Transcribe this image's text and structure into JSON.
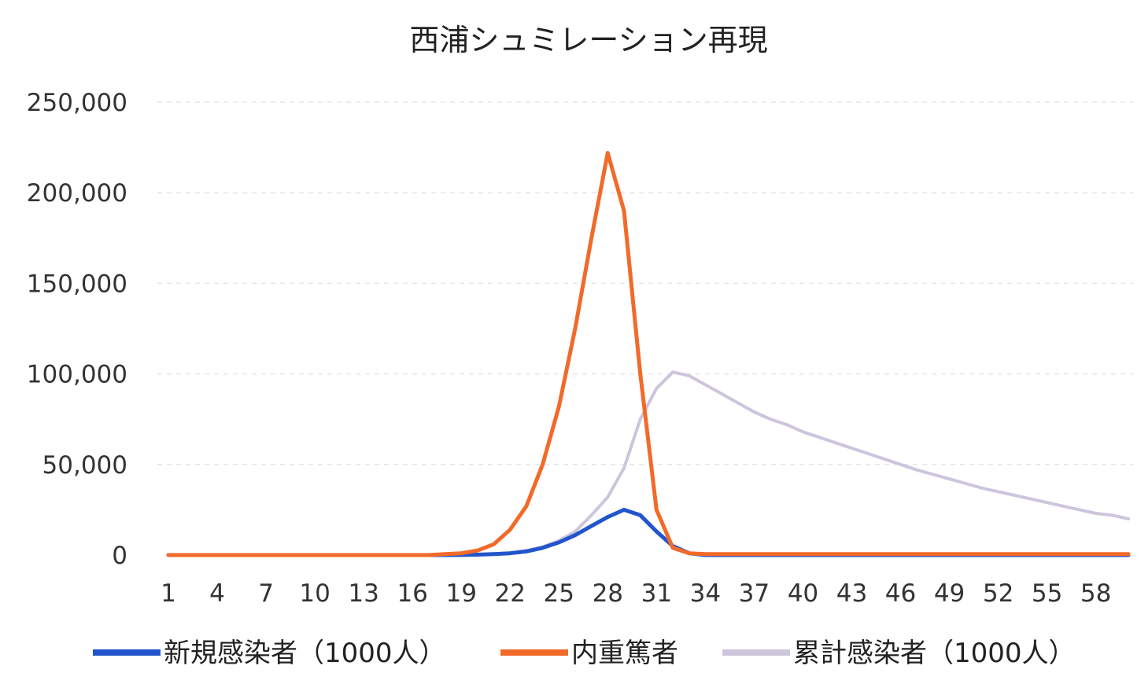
{
  "chart_data": {
    "type": "line",
    "title": "西浦シュミレーション再現",
    "xlabel": "",
    "ylabel": "",
    "ylim": [
      0,
      250000
    ],
    "y_ticks": [
      0,
      50000,
      100000,
      150000,
      200000,
      250000
    ],
    "y_tick_labels": [
      "0",
      "50,000",
      "100,000",
      "150,000",
      "200,000",
      "250,000"
    ],
    "x": [
      1,
      2,
      3,
      4,
      5,
      6,
      7,
      8,
      9,
      10,
      11,
      12,
      13,
      14,
      15,
      16,
      17,
      18,
      19,
      20,
      21,
      22,
      23,
      24,
      25,
      26,
      27,
      28,
      29,
      30,
      31,
      32,
      33,
      34,
      35,
      36,
      37,
      38,
      39,
      40,
      41,
      42,
      43,
      44,
      45,
      46,
      47,
      48,
      49,
      50,
      51,
      52,
      53,
      54,
      55,
      56,
      57,
      58,
      59,
      60
    ],
    "x_tick_labels": [
      "1",
      "4",
      "7",
      "10",
      "13",
      "16",
      "19",
      "22",
      "25",
      "28",
      "31",
      "34",
      "37",
      "40",
      "43",
      "46",
      "49",
      "52",
      "55",
      "58"
    ],
    "x_tick_values": [
      1,
      4,
      7,
      10,
      13,
      16,
      19,
      22,
      25,
      28,
      31,
      34,
      37,
      40,
      43,
      46,
      49,
      52,
      55,
      58
    ],
    "grid": true,
    "legend_position": "bottom",
    "series": [
      {
        "name": "新規感染者（1000人）",
        "color": "#2255cc",
        "values": [
          0,
          0,
          0,
          0,
          0,
          0,
          0,
          0,
          0,
          0,
          0,
          0,
          0,
          0,
          0,
          0,
          0,
          0,
          50,
          200,
          500,
          1000,
          2000,
          4000,
          7000,
          11000,
          16000,
          21000,
          25000,
          22000,
          13000,
          5000,
          1000,
          0,
          0,
          0,
          0,
          0,
          0,
          0,
          0,
          0,
          0,
          0,
          0,
          0,
          0,
          0,
          0,
          0,
          0,
          0,
          0,
          0,
          0,
          0,
          0,
          0,
          0,
          0
        ]
      },
      {
        "name": "内重篤者",
        "color": "#f26a2a",
        "values": [
          0,
          0,
          0,
          0,
          0,
          0,
          0,
          0,
          0,
          0,
          0,
          0,
          0,
          0,
          0,
          0,
          0,
          500,
          1000,
          2500,
          6000,
          14000,
          27000,
          50000,
          82000,
          125000,
          175000,
          222000,
          190000,
          100000,
          25000,
          4000,
          1000,
          500,
          500,
          500,
          500,
          500,
          500,
          500,
          500,
          500,
          500,
          500,
          500,
          500,
          500,
          500,
          500,
          500,
          500,
          500,
          500,
          500,
          500,
          500,
          500,
          500,
          500,
          500
        ]
      },
      {
        "name": "累計感染者（1000人）",
        "color": "#cdc5dc",
        "values": [
          0,
          0,
          0,
          0,
          0,
          0,
          0,
          0,
          0,
          0,
          0,
          0,
          0,
          0,
          0,
          0,
          0,
          0,
          0,
          200,
          600,
          1200,
          2500,
          4500,
          8000,
          13000,
          22000,
          32000,
          48000,
          75000,
          92000,
          101000,
          99000,
          94000,
          89000,
          84000,
          79000,
          75000,
          72000,
          68000,
          65000,
          62000,
          59000,
          56000,
          53000,
          50000,
          47000,
          44500,
          42000,
          39500,
          37000,
          35000,
          33000,
          31000,
          29000,
          27000,
          25000,
          23000,
          22000,
          20000
        ]
      }
    ]
  }
}
